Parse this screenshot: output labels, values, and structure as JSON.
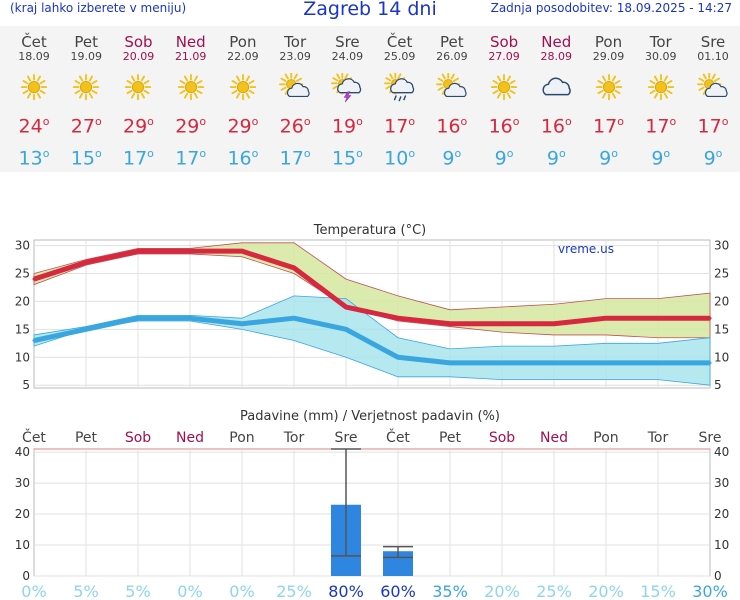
{
  "header": {
    "menu_hint": "(kraj lahko izberete v meniju)",
    "title": "Zagreb 14 dni",
    "updated": "Zadnja posodobitev: 18.09.2025 - 14:27"
  },
  "days": [
    {
      "name": "Čet",
      "date": "18.09",
      "weekend": false,
      "icon": "sun-icon",
      "max": "24",
      "min": "13"
    },
    {
      "name": "Pet",
      "date": "19.09",
      "weekend": false,
      "icon": "sun-icon",
      "max": "27",
      "min": "15"
    },
    {
      "name": "Sob",
      "date": "20.09",
      "weekend": true,
      "icon": "sun-icon",
      "max": "29",
      "min": "17"
    },
    {
      "name": "Ned",
      "date": "21.09",
      "weekend": true,
      "icon": "sun-icon",
      "max": "29",
      "min": "17"
    },
    {
      "name": "Pon",
      "date": "22.09",
      "weekend": false,
      "icon": "sun-icon",
      "max": "29",
      "min": "16"
    },
    {
      "name": "Tor",
      "date": "23.09",
      "weekend": false,
      "icon": "sun-cloud-icon",
      "max": "26",
      "min": "17"
    },
    {
      "name": "Sre",
      "date": "24.09",
      "weekend": false,
      "icon": "thunderstorm-icon",
      "max": "19",
      "min": "15"
    },
    {
      "name": "Čet",
      "date": "25.09",
      "weekend": false,
      "icon": "rain-cloud-icon",
      "max": "17",
      "min": "10"
    },
    {
      "name": "Pet",
      "date": "26.09",
      "weekend": false,
      "icon": "sun-cloud-icon",
      "max": "16",
      "min": "9"
    },
    {
      "name": "Sob",
      "date": "27.09",
      "weekend": true,
      "icon": "sun-icon",
      "max": "16",
      "min": "9"
    },
    {
      "name": "Ned",
      "date": "28.09",
      "weekend": true,
      "icon": "cloud-icon",
      "max": "16",
      "min": "9"
    },
    {
      "name": "Pon",
      "date": "29.09",
      "weekend": false,
      "icon": "sun-icon",
      "max": "17",
      "min": "9"
    },
    {
      "name": "Tor",
      "date": "30.09",
      "weekend": false,
      "icon": "sun-icon",
      "max": "17",
      "min": "9"
    },
    {
      "name": "Sre",
      "date": "01.10",
      "weekend": false,
      "icon": "sun-cloud-icon",
      "max": "17",
      "min": "9"
    }
  ],
  "colors": {
    "link_blue": "#1a35c8",
    "max_red": "#d6283e",
    "min_blue": "#3aa6e0",
    "weekend": "#a01050",
    "max_band": "#d5e8a0",
    "min_band": "#a8e4ec",
    "bar": "#2f86e0",
    "sun": "#f2c21b"
  },
  "chart_data": [
    {
      "type": "line",
      "title": "Temperatura (°C)",
      "watermark": "vreme.us",
      "ylim": [
        4.5,
        31
      ],
      "yticks": [
        5,
        10,
        15,
        20,
        25,
        30
      ],
      "x": [
        "Čet",
        "Pet",
        "Sob",
        "Ned",
        "Pon",
        "Tor",
        "Sre",
        "Čet",
        "Pet",
        "Sob",
        "Ned",
        "Pon",
        "Tor",
        "Sre"
      ],
      "series": [
        {
          "role": "max",
          "values": [
            24,
            27,
            29,
            29,
            29,
            26,
            19,
            17,
            16,
            16,
            16,
            17,
            17,
            17
          ],
          "band_high": [
            25,
            27.5,
            29.5,
            29.5,
            30.5,
            30.5,
            24,
            21,
            18.5,
            19,
            19.5,
            20.5,
            20.5,
            21.5
          ],
          "band_low": [
            23,
            26.5,
            28.5,
            28.5,
            28,
            25,
            19,
            16.5,
            15.5,
            14.5,
            14,
            14,
            13.5,
            13.5
          ]
        },
        {
          "role": "min",
          "values": [
            13,
            15,
            17,
            17,
            16,
            17,
            15,
            10,
            9,
            9,
            9,
            9,
            9,
            9
          ],
          "band_high": [
            14,
            15.5,
            17.5,
            17.5,
            17,
            21,
            20.5,
            13.5,
            11.5,
            12,
            12,
            12.5,
            12.5,
            13.5
          ],
          "band_low": [
            12,
            15,
            16.5,
            16.5,
            15,
            13,
            10,
            6.5,
            6.5,
            6,
            6,
            6,
            6,
            5
          ]
        }
      ]
    },
    {
      "type": "bar",
      "title": "Padavine (mm) / Verjetnost padavin (%)",
      "ylim": [
        0,
        41
      ],
      "yticks": [
        0,
        10,
        20,
        30,
        40
      ],
      "categories": [
        "Čet",
        "Pet",
        "Sob",
        "Ned",
        "Pon",
        "Tor",
        "Sre",
        "Čet",
        "Pet",
        "Sob",
        "Ned",
        "Pon",
        "Tor",
        "Sre"
      ],
      "values": [
        0,
        0,
        0,
        0,
        0,
        0,
        23,
        8,
        0,
        0,
        0,
        0,
        0,
        0
      ],
      "err_low": [
        0,
        0,
        0,
        0,
        0,
        0,
        6.5,
        6,
        0,
        0,
        0,
        0,
        0,
        0
      ],
      "err_high": [
        0,
        0,
        0,
        0,
        0,
        0,
        41,
        9.5,
        0,
        0,
        0,
        0,
        0,
        0
      ],
      "probability": [
        "0%",
        "5%",
        "5%",
        "0%",
        "0%",
        "25%",
        "80%",
        "60%",
        "35%",
        "20%",
        "25%",
        "20%",
        "15%",
        "30%"
      ]
    }
  ]
}
